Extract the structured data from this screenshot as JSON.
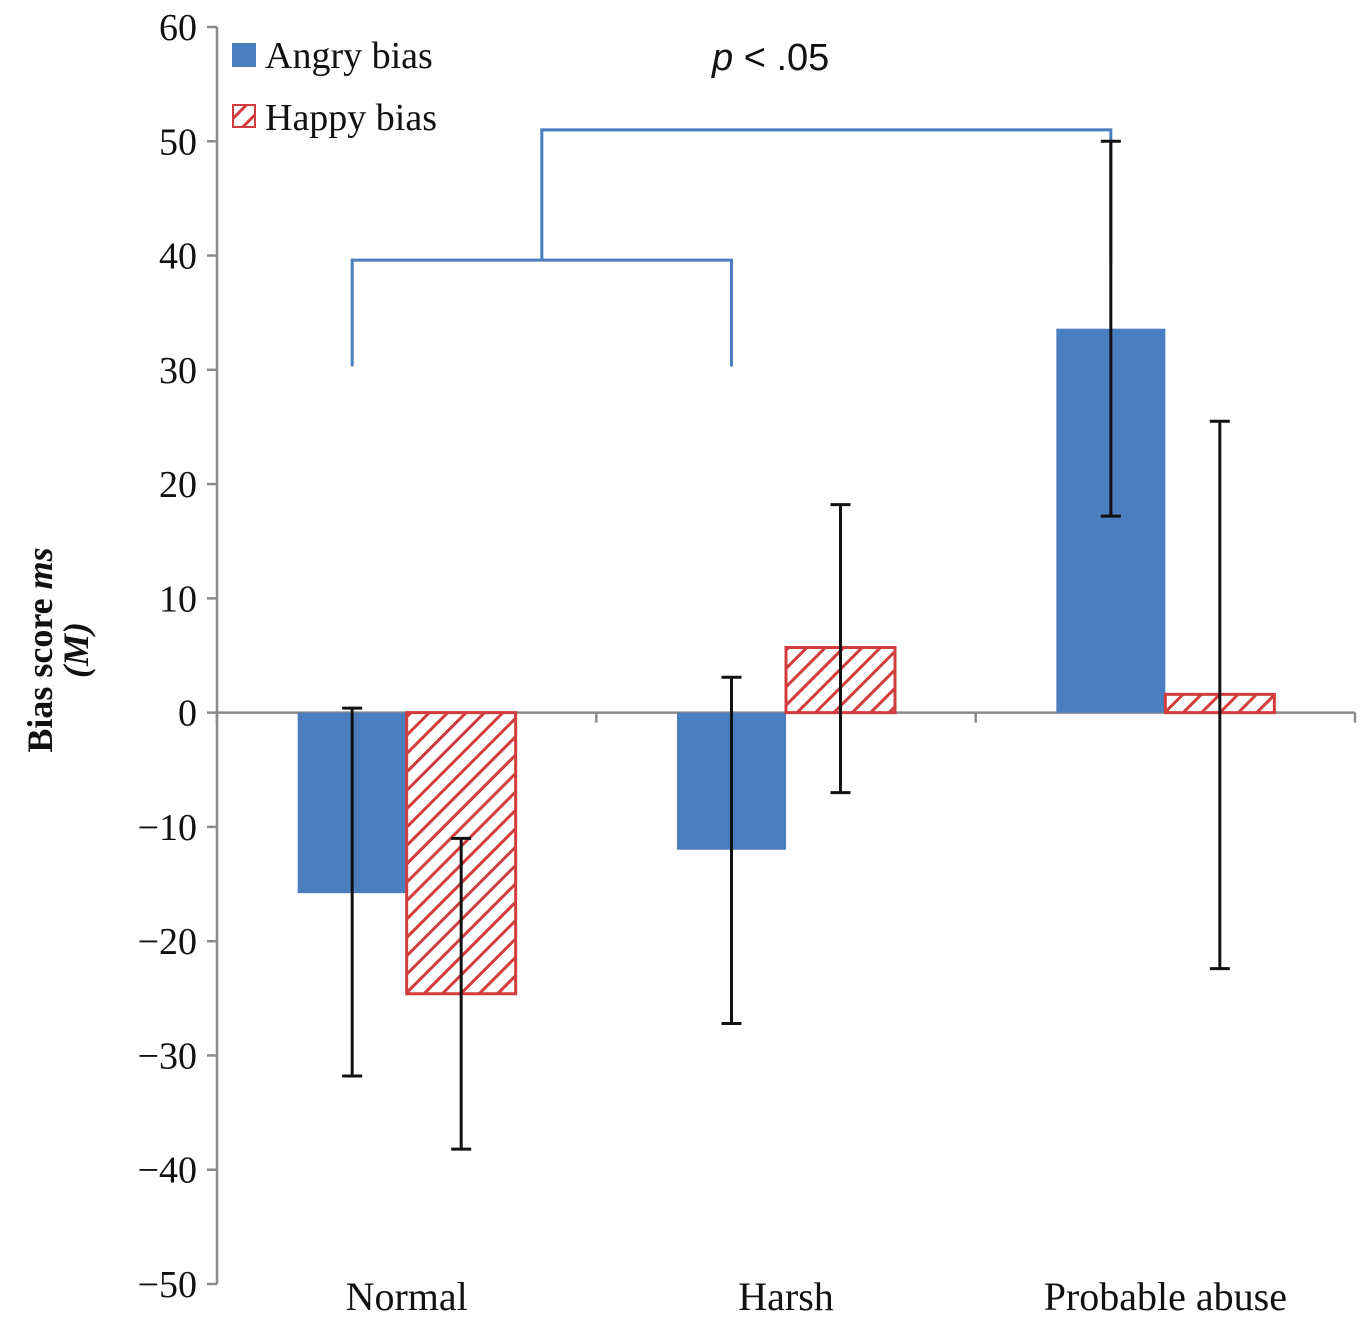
{
  "chart_data": {
    "type": "bar",
    "categories": [
      "Normal",
      "Harsh",
      "Probable abuse"
    ],
    "series": [
      {
        "name": "Angry bias",
        "values": [
          -15.8,
          -12.0,
          33.6
        ],
        "error_low": [
          -31.8,
          -27.2,
          17.2
        ],
        "error_high": [
          0.4,
          3.1,
          50.0
        ],
        "color": "#4a7ebf",
        "pattern": "solid"
      },
      {
        "name": "Happy bias",
        "values": [
          -24.6,
          5.7,
          1.6
        ],
        "error_low": [
          -38.2,
          -7.0,
          -22.4
        ],
        "error_high": [
          -11.0,
          18.2,
          25.5
        ],
        "color": "#d23c3c",
        "pattern": "hatched"
      }
    ],
    "ylim": [
      -50,
      60
    ],
    "yticks": [
      -50,
      -40,
      -30,
      -20,
      -10,
      0,
      10,
      20,
      30,
      40,
      50,
      60
    ],
    "ylabel_main": "Bias score",
    "ylabel_unit": "ms",
    "ylabel_stat": "(M)",
    "xlabel": "",
    "title": "",
    "legend_position": "top-left",
    "grid": false,
    "significance": {
      "label_p": "p",
      "label_rest": " < .05",
      "color": "#4a7ebf",
      "comparison": [
        "Normal + Harsh",
        "Probable abuse"
      ]
    }
  },
  "ytick_labels": [
    "−50",
    "−40",
    "−30",
    "−20",
    "−10",
    "0",
    "10",
    "20",
    "30",
    "40",
    "50",
    "60"
  ]
}
